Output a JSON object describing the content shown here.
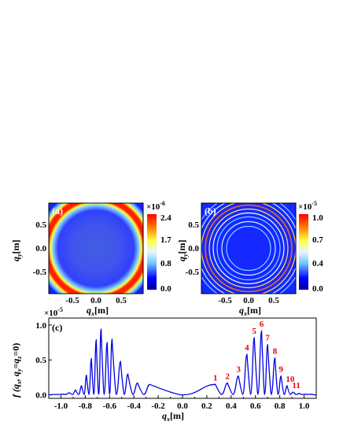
{
  "charts": [
    {
      "panel": "(a)",
      "type": "heatmap",
      "xlabel_main": "q",
      "xlabel_sub": "x",
      "xlabel_unit": "[m]",
      "ylabel_main": "q",
      "ylabel_sub": "y",
      "ylabel_unit": "[m]",
      "xticks": [
        "-0.5",
        "0.0",
        "0.5"
      ],
      "yticks": [
        "0.5",
        "0.0",
        "-0.5"
      ],
      "colorbar_exponent": "-6",
      "colorbar_ticks": [
        "2.4",
        "1.7",
        "0.8",
        "0.0"
      ],
      "colorbar_min": 0.0,
      "colorbar_max": 2.4
    },
    {
      "panel": "(b)",
      "type": "heatmap",
      "xlabel_main": "q",
      "xlabel_sub": "x",
      "xlabel_unit": "[m]",
      "ylabel_main": "q",
      "ylabel_sub": "y",
      "ylabel_unit": "[m]",
      "xticks": [
        "-0.5",
        "0.0",
        "0.5"
      ],
      "yticks": [
        "0.5",
        "0.0",
        "-0.5"
      ],
      "colorbar_exponent": "-5",
      "colorbar_ticks": [
        "1.0",
        "0.7",
        "0.4",
        "0.0"
      ],
      "colorbar_min": 0.0,
      "colorbar_max": 1.0
    },
    {
      "panel": "(c)",
      "type": "line",
      "xlabel_main": "q",
      "xlabel_sub": "x",
      "xlabel_unit": "[m]",
      "ylabel": "f (q",
      "ylabel_sub1": "x",
      "ylabel_mid": ", q",
      "ylabel_sub2": "y",
      "ylabel_eq": "=q",
      "ylabel_sub3": "z",
      "ylabel_end": "=0)",
      "y_exponent": "-5",
      "xlim": [
        -1.1,
        1.1
      ],
      "ylim": [
        -0.05,
        1.1
      ],
      "xticks": [
        "-1.0",
        "-0.9",
        "-0.8",
        "-0.7",
        "-0.6",
        "-0.5",
        "-0.4",
        "-0.3",
        "-0.2",
        "-0.1",
        "0.0",
        "0.1",
        "0.2",
        "0.3",
        "0.4",
        "0.5",
        "0.6",
        "0.7",
        "0.8",
        "0.9",
        "1.0"
      ],
      "yticks": [
        "0.0",
        "0.5",
        "1.0"
      ],
      "series_color": "#0000e6",
      "left_peaks": [
        {
          "x": -0.99,
          "y": 0.01
        },
        {
          "x": -0.93,
          "y": 0.03
        },
        {
          "x": -0.88,
          "y": 0.07
        },
        {
          "x": -0.83,
          "y": 0.13
        },
        {
          "x": -0.79,
          "y": 0.28
        },
        {
          "x": -0.75,
          "y": 0.52
        },
        {
          "x": -0.71,
          "y": 0.79
        },
        {
          "x": -0.67,
          "y": 0.94
        },
        {
          "x": -0.62,
          "y": 0.75
        },
        {
          "x": -0.58,
          "y": 0.8
        },
        {
          "x": -0.51,
          "y": 0.48
        },
        {
          "x": -0.45,
          "y": 0.3
        },
        {
          "x": -0.37,
          "y": 0.17
        },
        {
          "x": -0.27,
          "y": 0.15
        }
      ],
      "right_peaks": [
        {
          "label": "1",
          "x": 0.27,
          "y": 0.15
        },
        {
          "label": "2",
          "x": 0.37,
          "y": 0.17
        },
        {
          "label": "3",
          "x": 0.46,
          "y": 0.27
        },
        {
          "label": "4",
          "x": 0.53,
          "y": 0.58
        },
        {
          "label": "5",
          "x": 0.59,
          "y": 0.82
        },
        {
          "label": "6",
          "x": 0.65,
          "y": 0.92
        },
        {
          "label": "7",
          "x": 0.7,
          "y": 0.72
        },
        {
          "label": "8",
          "x": 0.76,
          "y": 0.53
        },
        {
          "label": "9",
          "x": 0.81,
          "y": 0.27
        },
        {
          "label": "10",
          "x": 0.86,
          "y": 0.13
        },
        {
          "label": "11",
          "x": 0.91,
          "y": 0.04
        }
      ],
      "right_tail": [
        {
          "x": 0.96,
          "y": 0.02
        },
        {
          "x": 1.01,
          "y": 0.01
        },
        {
          "x": 1.06,
          "y": 0.01
        }
      ],
      "left_tail": [
        {
          "x": -1.04,
          "y": 0.005
        }
      ]
    }
  ]
}
